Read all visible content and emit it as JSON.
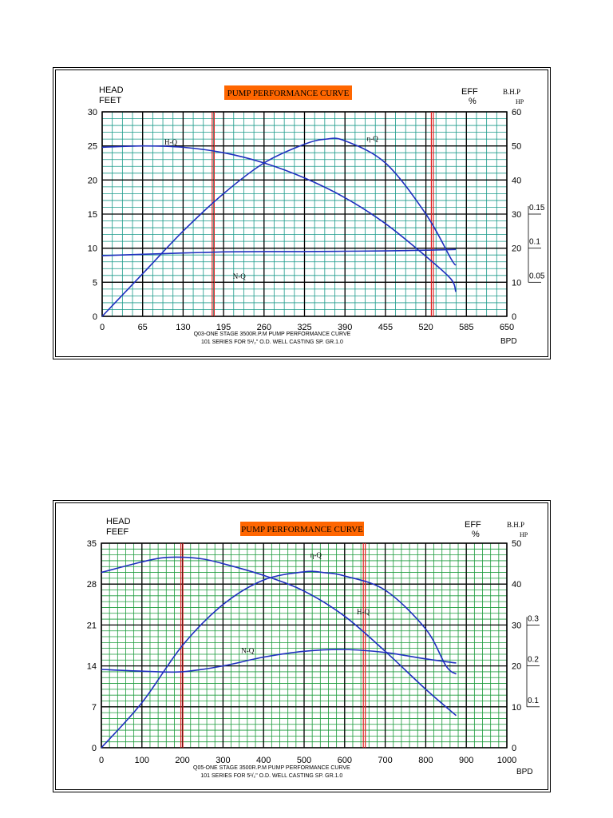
{
  "chart_data": [
    {
      "type": "line",
      "title": "PUMP PERFORMANCE CURVE",
      "title_bg": "#ff6600",
      "head_label": [
        "HEAD",
        "FEET"
      ],
      "eff_label": [
        "EFF",
        "%"
      ],
      "bhp_label": [
        "B.H.P",
        "HP"
      ],
      "xlabel": "BPD",
      "footer": [
        "Q03-ONE STAGE 3500R.P.M PUMP PERFORMANCE CURVE",
        "101 SERIES FOR 5¹/₂\" O.D. WELL CASTING SP. GR.1.0"
      ],
      "xlim": [
        0,
        650
      ],
      "x_ticks": [
        "0",
        "65",
        "130",
        "195",
        "260",
        "325",
        "390",
        "455",
        "520",
        "585",
        "650"
      ],
      "y_left_lim": [
        0,
        30
      ],
      "y_left_ticks": [
        "0",
        "5",
        "10",
        "15",
        "20",
        "25",
        "30"
      ],
      "y_right_lim": [
        0,
        60
      ],
      "y_right_ticks": [
        "0",
        "10",
        "20",
        "30",
        "40",
        "50",
        "60"
      ],
      "bhp_ticks": [
        {
          "label": "0.05",
          "eff": 10
        },
        {
          "label": "0.1",
          "eff": 20
        },
        {
          "label": "0.15",
          "eff": 30
        }
      ],
      "grid_color": "#1a9a8a",
      "line_color": "#1f2fbf",
      "red_lines_x": [
        178,
        530
      ],
      "series": [
        {
          "name": "H-Q",
          "axis": "left",
          "label_at": [
            100,
            25.2
          ],
          "points": [
            [
              0,
              24.8
            ],
            [
              65,
              25.0
            ],
            [
              130,
              24.8
            ],
            [
              195,
              24.0
            ],
            [
              260,
              22.5
            ],
            [
              325,
              20.3
            ],
            [
              390,
              17.4
            ],
            [
              455,
              13.6
            ],
            [
              520,
              8.8
            ],
            [
              560,
              5.5
            ],
            [
              568,
              3.6
            ]
          ]
        },
        {
          "name": "η-Q",
          "axis": "right",
          "label_at": [
            425,
            51.5
          ],
          "points": [
            [
              0,
              0
            ],
            [
              65,
              12.5
            ],
            [
              130,
              25
            ],
            [
              195,
              36
            ],
            [
              260,
              45
            ],
            [
              325,
              50.5
            ],
            [
              360,
              52
            ],
            [
              390,
              51.5
            ],
            [
              455,
              45
            ],
            [
              520,
              30
            ],
            [
              560,
              17
            ],
            [
              568,
              15
            ]
          ]
        },
        {
          "name": "N-Q",
          "axis": "left",
          "label_at": [
            210,
            5.5
          ],
          "points": [
            [
              0,
              8.9
            ],
            [
              65,
              9.1
            ],
            [
              130,
              9.3
            ],
            [
              195,
              9.45
            ],
            [
              260,
              9.5
            ],
            [
              325,
              9.5
            ],
            [
              390,
              9.55
            ],
            [
              455,
              9.6
            ],
            [
              520,
              9.7
            ],
            [
              568,
              9.8
            ]
          ]
        }
      ]
    },
    {
      "type": "line",
      "title": "PUMP PERFORMANCE CURVE",
      "title_bg": "#ff6600",
      "head_label": [
        "HEAD",
        "FEEF"
      ],
      "eff_label": [
        "EFF",
        "%"
      ],
      "bhp_label": [
        "B.H.P",
        "HP"
      ],
      "xlabel": "BPD",
      "footer": [
        "Q05-ONE STAGE 3500R.P.M PUMP PERFORMANCE CURVE",
        "101 SERIES FOR 5¹/₂\" O.D. WELL CASTING SP. GR.1.0"
      ],
      "xlim": [
        0,
        1000
      ],
      "x_ticks": [
        "0",
        "100",
        "200",
        "300",
        "400",
        "500",
        "600",
        "700",
        "800",
        "900",
        "1000"
      ],
      "y_left_lim": [
        0,
        35
      ],
      "y_left_ticks": [
        "0",
        "7",
        "14",
        "21",
        "28",
        "35"
      ],
      "y_right_lim": [
        0,
        50
      ],
      "y_right_ticks": [
        "0",
        "10",
        "20",
        "30",
        "40",
        "50"
      ],
      "bhp_ticks": [
        {
          "label": "0.1",
          "eff": 10
        },
        {
          "label": "0.2",
          "eff": 20
        },
        {
          "label": "0.3",
          "eff": 30
        }
      ],
      "grid_color": "#1a9a3a",
      "line_color": "#1f2fbf",
      "red_lines_x": [
        198,
        648
      ],
      "series": [
        {
          "name": "H-Q",
          "axis": "left",
          "label_at": [
            630,
            22.8
          ],
          "points": [
            [
              0,
              30
            ],
            [
              100,
              31.8
            ],
            [
              150,
              32.5
            ],
            [
              200,
              32.6
            ],
            [
              250,
              32.3
            ],
            [
              300,
              31.5
            ],
            [
              400,
              29.5
            ],
            [
              500,
              26.8
            ],
            [
              600,
              22.5
            ],
            [
              700,
              16.5
            ],
            [
              800,
              10
            ],
            [
              875,
              5.5
            ]
          ]
        },
        {
          "name": "η-Q",
          "axis": "right",
          "label_at": [
            515,
            46.5
          ],
          "points": [
            [
              0,
              0
            ],
            [
              100,
              11
            ],
            [
              200,
              25
            ],
            [
              300,
              35
            ],
            [
              400,
              41
            ],
            [
              500,
              43
            ],
            [
              550,
              42.8
            ],
            [
              600,
              42
            ],
            [
              700,
              38.5
            ],
            [
              800,
              29
            ],
            [
              850,
              20
            ],
            [
              875,
              18
            ]
          ]
        },
        {
          "name": "N-Q",
          "axis": "left",
          "label_at": [
            345,
            16.2
          ],
          "points": [
            [
              0,
              13.4
            ],
            [
              100,
              13.1
            ],
            [
              200,
              13.0
            ],
            [
              300,
              14.0
            ],
            [
              400,
              15.5
            ],
            [
              500,
              16.5
            ],
            [
              600,
              16.8
            ],
            [
              700,
              16.3
            ],
            [
              800,
              15.2
            ],
            [
              875,
              14.5
            ]
          ]
        }
      ]
    }
  ]
}
